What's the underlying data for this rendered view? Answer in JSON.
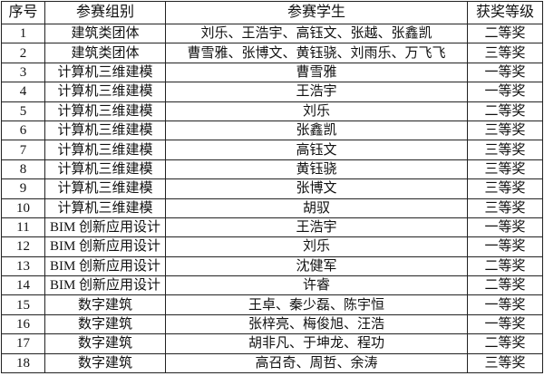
{
  "headers": [
    "序号",
    "参赛组别",
    "参赛学生",
    "获奖等级"
  ],
  "rows": [
    [
      "1",
      "建筑类团体",
      "刘乐、王浩宇、高钰文、张越、张鑫凯",
      "二等奖"
    ],
    [
      "2",
      "建筑类团体",
      "曹雪雅、张博文、黄钰骁、刘雨乐、万飞飞",
      "三等奖"
    ],
    [
      "3",
      "计算机三维建模",
      "曹雪雅",
      "一等奖"
    ],
    [
      "4",
      "计算机三维建模",
      "王浩宇",
      "一等奖"
    ],
    [
      "5",
      "计算机三维建模",
      "刘乐",
      "二等奖"
    ],
    [
      "6",
      "计算机三维建模",
      "张鑫凯",
      "三等奖"
    ],
    [
      "7",
      "计算机三维建模",
      "高钰文",
      "三等奖"
    ],
    [
      "8",
      "计算机三维建模",
      "黄钰骁",
      "三等奖"
    ],
    [
      "9",
      "计算机三维建模",
      "张博文",
      "三等奖"
    ],
    [
      "10",
      "计算机三维建模",
      "胡驭",
      "三等奖"
    ],
    [
      "11",
      "BIM 创新应用设计",
      "王浩宇",
      "一等奖"
    ],
    [
      "12",
      "BIM 创新应用设计",
      "刘乐",
      "一等奖"
    ],
    [
      "13",
      "BIM 创新应用设计",
      "沈健军",
      "二等奖"
    ],
    [
      "14",
      "BIM 创新应用设计",
      "许睿",
      "二等奖"
    ],
    [
      "15",
      "数字建筑",
      "王卓、秦少磊、陈宇恒",
      "一等奖"
    ],
    [
      "16",
      "数字建筑",
      "张梓亮、梅俊旭、汪浩",
      "一等奖"
    ],
    [
      "17",
      "数字建筑",
      "胡非凡、于坤龙、程功",
      "二等奖"
    ],
    [
      "18",
      "数字建筑",
      "高召奇、周哲、余涛",
      "三等奖"
    ]
  ]
}
